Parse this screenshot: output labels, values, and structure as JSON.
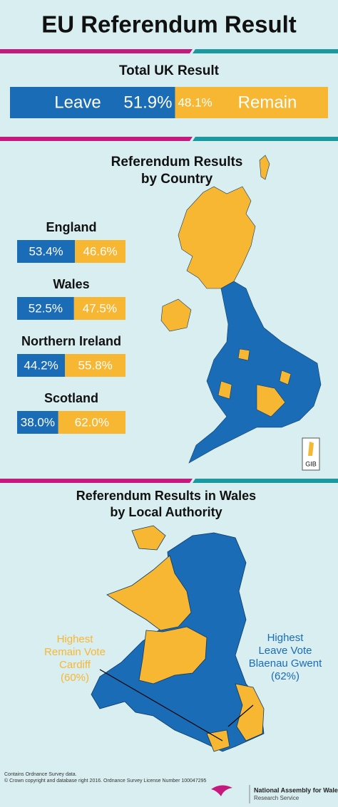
{
  "title": "EU Referendum Result",
  "total": {
    "heading": "Total UK Result",
    "leave_label": "Leave",
    "remain_label": "Remain",
    "leave": {
      "value": 51.9,
      "label": "51.9%"
    },
    "remain": {
      "value": 48.1,
      "label": "48.1%"
    }
  },
  "countries": {
    "heading_line1": "Referendum Results",
    "heading_line2": "by Country",
    "items": [
      {
        "name": "England",
        "leave": {
          "value": 53.4,
          "label": "53.4%"
        },
        "remain": {
          "value": 46.6,
          "label": "46.6%"
        }
      },
      {
        "name": "Wales",
        "leave": {
          "value": 52.5,
          "label": "52.5%"
        },
        "remain": {
          "value": 47.5,
          "label": "47.5%"
        }
      },
      {
        "name": "Northern Ireland",
        "leave": {
          "value": 44.2,
          "label": "44.2%"
        },
        "remain": {
          "value": 55.8,
          "label": "55.8%"
        }
      },
      {
        "name": "Scotland",
        "leave": {
          "value": 38.0,
          "label": "38.0%"
        },
        "remain": {
          "value": 62.0,
          "label": "62.0%"
        }
      }
    ],
    "gibraltar_label": "GIB"
  },
  "wales": {
    "heading_line1": "Referendum Results in Wales",
    "heading_line2": "by Local Authority",
    "remain_note": [
      "Highest",
      "Remain Vote",
      "Cardiff",
      "(60%)"
    ],
    "leave_note": [
      "Highest",
      "Leave Vote",
      "Blaenau Gwent",
      "(62%)"
    ]
  },
  "footer": {
    "source_line1": "Contains Ordnance Survey data.",
    "source_line2": "© Crown copyright and database right 2016. Ordnance Survey License Number 100047295",
    "org_line1": "National Assembly for Wales",
    "org_line2": "Research Service"
  }
}
